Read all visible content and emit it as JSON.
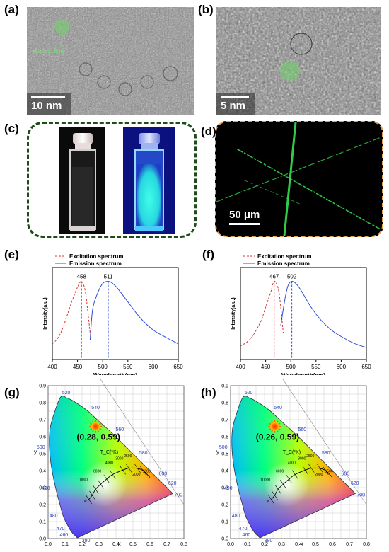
{
  "panels": {
    "a": {
      "label": "(a)",
      "scale": "10 nm",
      "annotation": "Carbon dots"
    },
    "b": {
      "label": "(b)",
      "scale": "5 nm"
    },
    "c": {
      "label": "(c)"
    },
    "d": {
      "label": "(d)",
      "scale": "50 μm"
    },
    "e": {
      "label": "(e)"
    },
    "f": {
      "label": "(f)"
    },
    "g": {
      "label": "(g)",
      "coord": "(0.28, 0.59)"
    },
    "h": {
      "label": "(h)",
      "coord": "(0.26, 0.59)"
    }
  },
  "colors": {
    "excitation": "#e03030",
    "emission": "#2d4fd6",
    "vial_glow": "#2ee8e0",
    "fiber": "#39e052"
  },
  "chart_data": [
    {
      "type": "line",
      "panel": "e",
      "xlabel": "Wavelength(nm)",
      "ylabel": "Intensity(a.u.)",
      "xlim": [
        400,
        650
      ],
      "xticks": [
        "400",
        "450",
        "500",
        "550",
        "600",
        "650"
      ],
      "peak_labels": [
        "458",
        "511"
      ],
      "series": [
        {
          "name": "Excitation spectrum",
          "style": "dashed",
          "x": [
            400,
            410,
            420,
            430,
            440,
            450,
            458,
            465,
            470,
            475
          ],
          "y": [
            0.15,
            0.22,
            0.35,
            0.55,
            0.75,
            0.92,
            1.0,
            0.88,
            0.62,
            0.3
          ]
        },
        {
          "name": "Emission spectrum",
          "style": "solid",
          "x": [
            475,
            480,
            490,
            500,
            511,
            520,
            530,
            550,
            575,
            600,
            625,
            650
          ],
          "y": [
            0.2,
            0.62,
            0.84,
            0.97,
            1.0,
            0.97,
            0.9,
            0.72,
            0.5,
            0.34,
            0.24,
            0.15
          ]
        }
      ]
    },
    {
      "type": "line",
      "panel": "f",
      "xlabel": "Wavelength(nm)",
      "ylabel": "Intensity(a.u.)",
      "xlim": [
        400,
        650
      ],
      "xticks": [
        "400",
        "450",
        "500",
        "550",
        "600",
        "650"
      ],
      "peak_labels": [
        "467",
        "502"
      ],
      "series": [
        {
          "name": "Excitation spectrum",
          "style": "dashed",
          "x": [
            400,
            420,
            440,
            450,
            460,
            467,
            475,
            480,
            485
          ],
          "y": [
            0.12,
            0.22,
            0.45,
            0.65,
            0.85,
            1.0,
            0.9,
            0.65,
            0.3
          ]
        },
        {
          "name": "Emission spectrum",
          "style": "solid",
          "x": [
            480,
            485,
            490,
            495,
            502,
            510,
            520,
            540,
            560,
            580,
            600,
            625,
            650
          ],
          "y": [
            0.4,
            0.62,
            0.82,
            0.95,
            1.0,
            0.97,
            0.88,
            0.65,
            0.47,
            0.34,
            0.25,
            0.16,
            0.1
          ]
        }
      ]
    },
    {
      "type": "scatter",
      "panel": "g",
      "xlabel": "x",
      "ylabel": "y",
      "xlim": [
        0,
        0.8
      ],
      "ylim": [
        0,
        0.9
      ],
      "xticks": [
        "0.0",
        "0.1",
        "0.2",
        "0.3",
        "0.4",
        "0.5",
        "0.6",
        "0.7",
        "0.8"
      ],
      "yticks": [
        "0.0",
        "0.1",
        "0.2",
        "0.3",
        "0.4",
        "0.5",
        "0.6",
        "0.7",
        "0.8",
        "0.9"
      ],
      "point": {
        "x": 0.28,
        "y": 0.59
      },
      "tc_label": "T_C(°K)",
      "wavelength_labels": [
        "380",
        "460",
        "470",
        "480",
        "490",
        "500",
        "520",
        "540",
        "560",
        "580",
        "600",
        "620",
        "700"
      ],
      "cct_labels": [
        "10000",
        "6000",
        "4000",
        "3000",
        "2500",
        "2000",
        "1500",
        "∞"
      ]
    },
    {
      "type": "scatter",
      "panel": "h",
      "xlabel": "x",
      "ylabel": "y",
      "xlim": [
        0,
        0.8
      ],
      "ylim": [
        0,
        0.9
      ],
      "xticks": [
        "0.0",
        "0.1",
        "0.2",
        "0.3",
        "0.4",
        "0.5",
        "0.6",
        "0.7",
        "0.8"
      ],
      "yticks": [
        "0.0",
        "0.1",
        "0.2",
        "0.3",
        "0.4",
        "0.5",
        "0.6",
        "0.7",
        "0.8",
        "0.9"
      ],
      "point": {
        "x": 0.26,
        "y": 0.59
      },
      "tc_label": "T_C(°K)",
      "wavelength_labels": [
        "380",
        "460",
        "470",
        "480",
        "490",
        "500",
        "520",
        "540",
        "560",
        "580",
        "600",
        "620",
        "700"
      ],
      "cct_labels": [
        "10000",
        "6000",
        "4000",
        "3000",
        "2500",
        "2000",
        "1500",
        "∞"
      ]
    }
  ]
}
